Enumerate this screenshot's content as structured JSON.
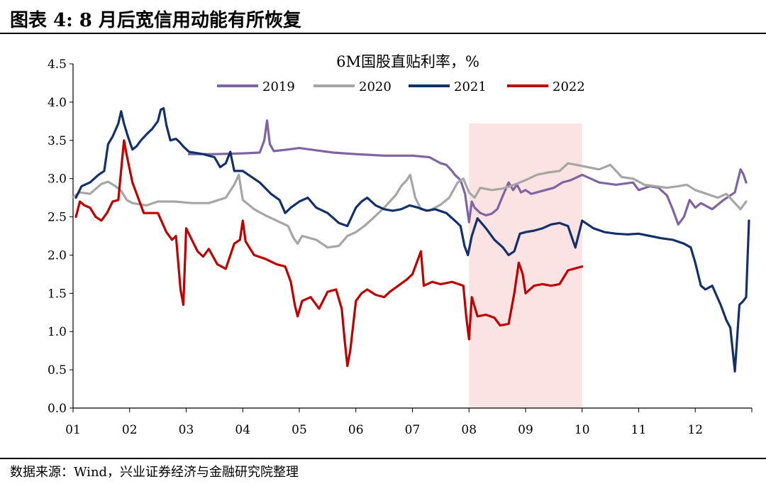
{
  "header": {
    "title": "图表 4:  8 月后宽信用动能有所恢复"
  },
  "footer": {
    "source": "数据来源：Wind，兴业证券经济与金融研究院整理"
  },
  "chart_data": {
    "type": "line",
    "title": "6M国股直贴利率，%",
    "x_ticks": [
      "01",
      "02",
      "03",
      "04",
      "05",
      "06",
      "07",
      "08",
      "09",
      "10",
      "11",
      "12"
    ],
    "y_ticks": [
      "0.0",
      "0.5",
      "1.0",
      "1.5",
      "2.0",
      "2.5",
      "3.0",
      "3.5",
      "4.0",
      "4.5"
    ],
    "xlim": [
      0,
      12
    ],
    "ylim": [
      0,
      4.5
    ],
    "legend_position": "top-center",
    "highlight_band": {
      "x_start": 7.0,
      "x_end": 9.0,
      "color": "#fbe3e3"
    },
    "series": [
      {
        "name": "2019",
        "color": "#8064a2",
        "points": [
          [
            2.05,
            3.32
          ],
          [
            2.5,
            3.32
          ],
          [
            3.0,
            3.33
          ],
          [
            3.3,
            3.34
          ],
          [
            3.38,
            3.5
          ],
          [
            3.43,
            3.76
          ],
          [
            3.48,
            3.45
          ],
          [
            3.55,
            3.36
          ],
          [
            3.8,
            3.38
          ],
          [
            4.0,
            3.4
          ],
          [
            4.3,
            3.37
          ],
          [
            4.6,
            3.34
          ],
          [
            5.0,
            3.32
          ],
          [
            5.5,
            3.3
          ],
          [
            6.0,
            3.3
          ],
          [
            6.3,
            3.28
          ],
          [
            6.5,
            3.2
          ],
          [
            6.6,
            3.18
          ],
          [
            6.7,
            3.1
          ],
          [
            6.75,
            3.05
          ],
          [
            6.85,
            2.98
          ],
          [
            6.93,
            2.8
          ],
          [
            7.0,
            2.43
          ],
          [
            7.05,
            2.7
          ],
          [
            7.1,
            2.62
          ],
          [
            7.2,
            2.55
          ],
          [
            7.3,
            2.52
          ],
          [
            7.4,
            2.54
          ],
          [
            7.5,
            2.6
          ],
          [
            7.6,
            2.78
          ],
          [
            7.7,
            2.95
          ],
          [
            7.78,
            2.85
          ],
          [
            7.85,
            2.92
          ],
          [
            7.92,
            2.82
          ],
          [
            8.0,
            2.85
          ],
          [
            8.1,
            2.8
          ],
          [
            8.2,
            2.82
          ],
          [
            8.35,
            2.85
          ],
          [
            8.5,
            2.88
          ],
          [
            8.65,
            2.95
          ],
          [
            8.8,
            2.98
          ],
          [
            9.0,
            3.05
          ],
          [
            9.3,
            2.95
          ],
          [
            9.6,
            2.92
          ],
          [
            9.9,
            2.95
          ],
          [
            10.0,
            2.85
          ],
          [
            10.2,
            2.9
          ],
          [
            10.35,
            2.88
          ],
          [
            10.5,
            2.78
          ],
          [
            10.6,
            2.6
          ],
          [
            10.7,
            2.4
          ],
          [
            10.8,
            2.5
          ],
          [
            10.9,
            2.72
          ],
          [
            11.0,
            2.62
          ],
          [
            11.1,
            2.68
          ],
          [
            11.3,
            2.6
          ],
          [
            11.5,
            2.72
          ],
          [
            11.7,
            2.82
          ],
          [
            11.8,
            3.12
          ],
          [
            11.85,
            3.06
          ],
          [
            11.9,
            2.95
          ]
        ]
      },
      {
        "name": "2020",
        "color": "#a6a6a6",
        "points": [
          [
            0.0,
            2.76
          ],
          [
            0.12,
            2.82
          ],
          [
            0.3,
            2.8
          ],
          [
            0.5,
            2.93
          ],
          [
            0.62,
            2.96
          ],
          [
            0.75,
            2.9
          ],
          [
            0.85,
            2.84
          ],
          [
            0.95,
            2.72
          ],
          [
            1.05,
            2.68
          ],
          [
            1.3,
            2.65
          ],
          [
            1.5,
            2.7
          ],
          [
            1.8,
            2.7
          ],
          [
            2.1,
            2.68
          ],
          [
            2.4,
            2.68
          ],
          [
            2.7,
            2.75
          ],
          [
            2.85,
            2.92
          ],
          [
            2.93,
            3.05
          ],
          [
            3.0,
            2.72
          ],
          [
            3.2,
            2.6
          ],
          [
            3.4,
            2.52
          ],
          [
            3.6,
            2.45
          ],
          [
            3.8,
            2.38
          ],
          [
            3.9,
            2.22
          ],
          [
            3.97,
            2.15
          ],
          [
            4.05,
            2.25
          ],
          [
            4.3,
            2.2
          ],
          [
            4.5,
            2.1
          ],
          [
            4.7,
            2.12
          ],
          [
            4.85,
            2.25
          ],
          [
            5.0,
            2.3
          ],
          [
            5.15,
            2.38
          ],
          [
            5.3,
            2.48
          ],
          [
            5.5,
            2.62
          ],
          [
            5.7,
            2.78
          ],
          [
            5.8,
            2.9
          ],
          [
            5.9,
            2.98
          ],
          [
            5.96,
            3.05
          ],
          [
            6.05,
            2.75
          ],
          [
            6.15,
            2.6
          ],
          [
            6.3,
            2.58
          ],
          [
            6.5,
            2.66
          ],
          [
            6.65,
            2.75
          ],
          [
            6.8,
            2.95
          ],
          [
            6.9,
            3.0
          ],
          [
            7.0,
            2.82
          ],
          [
            7.1,
            2.75
          ],
          [
            7.2,
            2.88
          ],
          [
            7.4,
            2.85
          ],
          [
            7.6,
            2.87
          ],
          [
            7.8,
            2.92
          ],
          [
            8.0,
            2.98
          ],
          [
            8.2,
            3.05
          ],
          [
            8.4,
            3.08
          ],
          [
            8.6,
            3.1
          ],
          [
            8.75,
            3.2
          ],
          [
            8.9,
            3.18
          ],
          [
            9.1,
            3.15
          ],
          [
            9.3,
            3.12
          ],
          [
            9.5,
            3.18
          ],
          [
            9.7,
            3.02
          ],
          [
            9.9,
            3.0
          ],
          [
            10.1,
            2.92
          ],
          [
            10.3,
            2.9
          ],
          [
            10.5,
            2.88
          ],
          [
            10.7,
            2.9
          ],
          [
            10.85,
            2.92
          ],
          [
            11.0,
            2.85
          ],
          [
            11.2,
            2.8
          ],
          [
            11.4,
            2.75
          ],
          [
            11.55,
            2.8
          ],
          [
            11.7,
            2.68
          ],
          [
            11.8,
            2.6
          ],
          [
            11.9,
            2.7
          ]
        ]
      },
      {
        "name": "2021",
        "color": "#14306b",
        "points": [
          [
            0.05,
            2.75
          ],
          [
            0.15,
            2.9
          ],
          [
            0.3,
            2.95
          ],
          [
            0.45,
            3.05
          ],
          [
            0.55,
            3.1
          ],
          [
            0.62,
            3.45
          ],
          [
            0.7,
            3.55
          ],
          [
            0.8,
            3.72
          ],
          [
            0.85,
            3.88
          ],
          [
            0.9,
            3.72
          ],
          [
            0.97,
            3.55
          ],
          [
            1.05,
            3.38
          ],
          [
            1.12,
            3.42
          ],
          [
            1.2,
            3.5
          ],
          [
            1.3,
            3.58
          ],
          [
            1.4,
            3.65
          ],
          [
            1.5,
            3.75
          ],
          [
            1.55,
            3.9
          ],
          [
            1.6,
            3.92
          ],
          [
            1.65,
            3.7
          ],
          [
            1.72,
            3.5
          ],
          [
            1.82,
            3.52
          ],
          [
            1.88,
            3.48
          ],
          [
            1.95,
            3.42
          ],
          [
            2.05,
            3.35
          ],
          [
            2.3,
            3.32
          ],
          [
            2.5,
            3.28
          ],
          [
            2.6,
            3.15
          ],
          [
            2.7,
            3.2
          ],
          [
            2.78,
            3.35
          ],
          [
            2.85,
            3.1
          ],
          [
            3.0,
            3.1
          ],
          [
            3.1,
            3.05
          ],
          [
            3.3,
            2.95
          ],
          [
            3.5,
            2.8
          ],
          [
            3.65,
            2.72
          ],
          [
            3.75,
            2.55
          ],
          [
            3.85,
            2.62
          ],
          [
            4.0,
            2.7
          ],
          [
            4.15,
            2.75
          ],
          [
            4.3,
            2.62
          ],
          [
            4.5,
            2.55
          ],
          [
            4.7,
            2.42
          ],
          [
            4.85,
            2.38
          ],
          [
            5.0,
            2.62
          ],
          [
            5.1,
            2.7
          ],
          [
            5.2,
            2.75
          ],
          [
            5.35,
            2.65
          ],
          [
            5.5,
            2.6
          ],
          [
            5.65,
            2.58
          ],
          [
            5.8,
            2.6
          ],
          [
            5.95,
            2.65
          ],
          [
            6.1,
            2.62
          ],
          [
            6.25,
            2.58
          ],
          [
            6.4,
            2.6
          ],
          [
            6.6,
            2.55
          ],
          [
            6.75,
            2.45
          ],
          [
            6.85,
            2.38
          ],
          [
            6.92,
            2.12
          ],
          [
            6.98,
            2.0
          ],
          [
            7.05,
            2.25
          ],
          [
            7.15,
            2.48
          ],
          [
            7.3,
            2.35
          ],
          [
            7.45,
            2.2
          ],
          [
            7.6,
            2.1
          ],
          [
            7.7,
            2.0
          ],
          [
            7.8,
            2.05
          ],
          [
            7.9,
            2.28
          ],
          [
            8.0,
            2.3
          ],
          [
            8.15,
            2.32
          ],
          [
            8.3,
            2.35
          ],
          [
            8.45,
            2.4
          ],
          [
            8.6,
            2.42
          ],
          [
            8.75,
            2.38
          ],
          [
            8.88,
            2.1
          ],
          [
            9.0,
            2.45
          ],
          [
            9.2,
            2.35
          ],
          [
            9.4,
            2.3
          ],
          [
            9.6,
            2.28
          ],
          [
            9.8,
            2.27
          ],
          [
            10.0,
            2.28
          ],
          [
            10.2,
            2.25
          ],
          [
            10.4,
            2.22
          ],
          [
            10.6,
            2.2
          ],
          [
            10.8,
            2.15
          ],
          [
            10.92,
            2.1
          ],
          [
            11.0,
            1.9
          ],
          [
            11.1,
            1.6
          ],
          [
            11.18,
            1.55
          ],
          [
            11.3,
            1.6
          ],
          [
            11.45,
            1.35
          ],
          [
            11.55,
            1.15
          ],
          [
            11.62,
            1.05
          ],
          [
            11.7,
            0.48
          ],
          [
            11.78,
            1.35
          ],
          [
            11.85,
            1.4
          ],
          [
            11.9,
            1.45
          ],
          [
            11.95,
            2.45
          ]
        ]
      },
      {
        "name": "2022",
        "color": "#c00000",
        "points": [
          [
            0.05,
            2.5
          ],
          [
            0.12,
            2.7
          ],
          [
            0.2,
            2.65
          ],
          [
            0.3,
            2.62
          ],
          [
            0.4,
            2.5
          ],
          [
            0.5,
            2.45
          ],
          [
            0.6,
            2.55
          ],
          [
            0.7,
            2.7
          ],
          [
            0.8,
            2.72
          ],
          [
            0.9,
            3.5
          ],
          [
            0.95,
            3.3
          ],
          [
            1.05,
            2.95
          ],
          [
            1.15,
            2.75
          ],
          [
            1.25,
            2.55
          ],
          [
            1.5,
            2.55
          ],
          [
            1.65,
            2.3
          ],
          [
            1.75,
            2.2
          ],
          [
            1.82,
            2.25
          ],
          [
            1.9,
            1.55
          ],
          [
            1.95,
            1.35
          ],
          [
            2.0,
            2.35
          ],
          [
            2.1,
            2.2
          ],
          [
            2.2,
            2.05
          ],
          [
            2.3,
            1.98
          ],
          [
            2.4,
            2.08
          ],
          [
            2.55,
            1.88
          ],
          [
            2.7,
            1.82
          ],
          [
            2.85,
            2.15
          ],
          [
            2.95,
            2.2
          ],
          [
            3.0,
            2.45
          ],
          [
            3.05,
            2.18
          ],
          [
            3.2,
            2.0
          ],
          [
            3.4,
            1.95
          ],
          [
            3.6,
            1.88
          ],
          [
            3.75,
            1.85
          ],
          [
            3.85,
            1.65
          ],
          [
            3.92,
            1.35
          ],
          [
            3.97,
            1.2
          ],
          [
            4.05,
            1.4
          ],
          [
            4.2,
            1.45
          ],
          [
            4.35,
            1.3
          ],
          [
            4.5,
            1.52
          ],
          [
            4.65,
            1.55
          ],
          [
            4.75,
            1.3
          ],
          [
            4.8,
            0.9
          ],
          [
            4.85,
            0.55
          ],
          [
            4.9,
            0.75
          ],
          [
            5.0,
            1.4
          ],
          [
            5.1,
            1.5
          ],
          [
            5.2,
            1.55
          ],
          [
            5.35,
            1.48
          ],
          [
            5.5,
            1.45
          ],
          [
            5.6,
            1.52
          ],
          [
            5.75,
            1.6
          ],
          [
            5.9,
            1.68
          ],
          [
            6.0,
            1.75
          ],
          [
            6.05,
            1.85
          ],
          [
            6.15,
            2.05
          ],
          [
            6.2,
            1.6
          ],
          [
            6.35,
            1.65
          ],
          [
            6.5,
            1.62
          ],
          [
            6.7,
            1.65
          ],
          [
            6.9,
            1.6
          ],
          [
            6.95,
            1.2
          ],
          [
            7.0,
            0.9
          ],
          [
            7.05,
            1.45
          ],
          [
            7.15,
            1.2
          ],
          [
            7.3,
            1.22
          ],
          [
            7.45,
            1.18
          ],
          [
            7.55,
            1.08
          ],
          [
            7.7,
            1.1
          ],
          [
            7.8,
            1.5
          ],
          [
            7.88,
            1.9
          ],
          [
            7.95,
            1.75
          ],
          [
            8.0,
            1.5
          ],
          [
            8.15,
            1.6
          ],
          [
            8.3,
            1.62
          ],
          [
            8.45,
            1.6
          ],
          [
            8.6,
            1.62
          ],
          [
            8.75,
            1.8
          ],
          [
            8.85,
            1.82
          ],
          [
            9.0,
            1.85
          ]
        ]
      }
    ]
  }
}
